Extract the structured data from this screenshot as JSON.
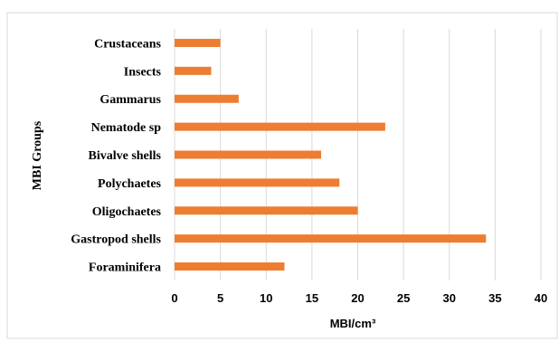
{
  "chart_data": {
    "type": "bar",
    "orientation": "horizontal",
    "categories": [
      "Crustaceans",
      "Insects",
      "Gammarus",
      "Nematode sp",
      "Bivalve shells",
      "Polychaetes",
      "Oligochaetes",
      "Gastropod shells",
      "Foraminifera"
    ],
    "values": [
      5,
      4,
      7,
      23,
      16,
      18,
      20,
      34,
      12
    ],
    "title": "",
    "xlabel": "MBI/cm³",
    "ylabel": "MBI Groups",
    "xlim": [
      0,
      40
    ],
    "xticks": [
      "0",
      "5",
      "10",
      "15",
      "20",
      "25",
      "30",
      "35",
      "40"
    ],
    "grid": "vertical",
    "bar_color": "#ed7d31"
  }
}
